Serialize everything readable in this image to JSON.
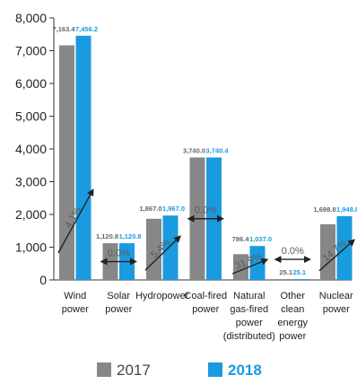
{
  "chart_data": {
    "type": "bar",
    "categories": [
      [
        "Wind",
        "power"
      ],
      [
        "Solar",
        "power"
      ],
      [
        "Hydropower"
      ],
      [
        "Coal-fired",
        "power"
      ],
      [
        "Natural",
        "gas-fired",
        "power",
        "(distributed)"
      ],
      [
        "Other",
        "clean",
        "energy",
        "power"
      ],
      [
        "Nuclear",
        "power"
      ]
    ],
    "series": [
      {
        "name": "2017",
        "color": "#878787",
        "values": [
          7163.4,
          1120.8,
          1867.0,
          3740.0,
          786.4,
          25.1,
          1698.8
        ],
        "labels": [
          "7,163.4",
          "1,120.8",
          "1,867.0",
          "3,740.0",
          "786.4",
          "25.1",
          "1,698.8"
        ]
      },
      {
        "name": "2018",
        "color": "#1a9be0",
        "values": [
          7456.2,
          1120.8,
          1967.0,
          3740.4,
          1037.0,
          25.1,
          1948.8
        ],
        "labels": [
          "7,456.2",
          "1,120.8",
          "1,967.0",
          "3,740.4",
          "1,037.0",
          "25.1",
          "1,948.8"
        ]
      }
    ],
    "changes": [
      {
        "text": "4.1%",
        "kind": "up"
      },
      {
        "text": "0.0%",
        "kind": "flat"
      },
      {
        "text": "5.4%",
        "kind": "up"
      },
      {
        "text": "0.0%",
        "kind": "flat"
      },
      {
        "text": "31.9%",
        "kind": "up"
      },
      {
        "text": "0.0%",
        "kind": "flat"
      },
      {
        "text": "14.7%",
        "kind": "up"
      }
    ],
    "yticks": [
      0,
      1000,
      2000,
      3000,
      4000,
      5000,
      6000,
      7000,
      8000
    ],
    "ytick_labels": [
      "0",
      "1,000",
      "2,000",
      "3,000",
      "4,000",
      "5,000",
      "6,000",
      "7,000",
      "8,000"
    ],
    "ylim": [
      0,
      8000
    ],
    "legend": {
      "position": "bottom",
      "items": [
        "2017",
        "2018"
      ]
    }
  }
}
